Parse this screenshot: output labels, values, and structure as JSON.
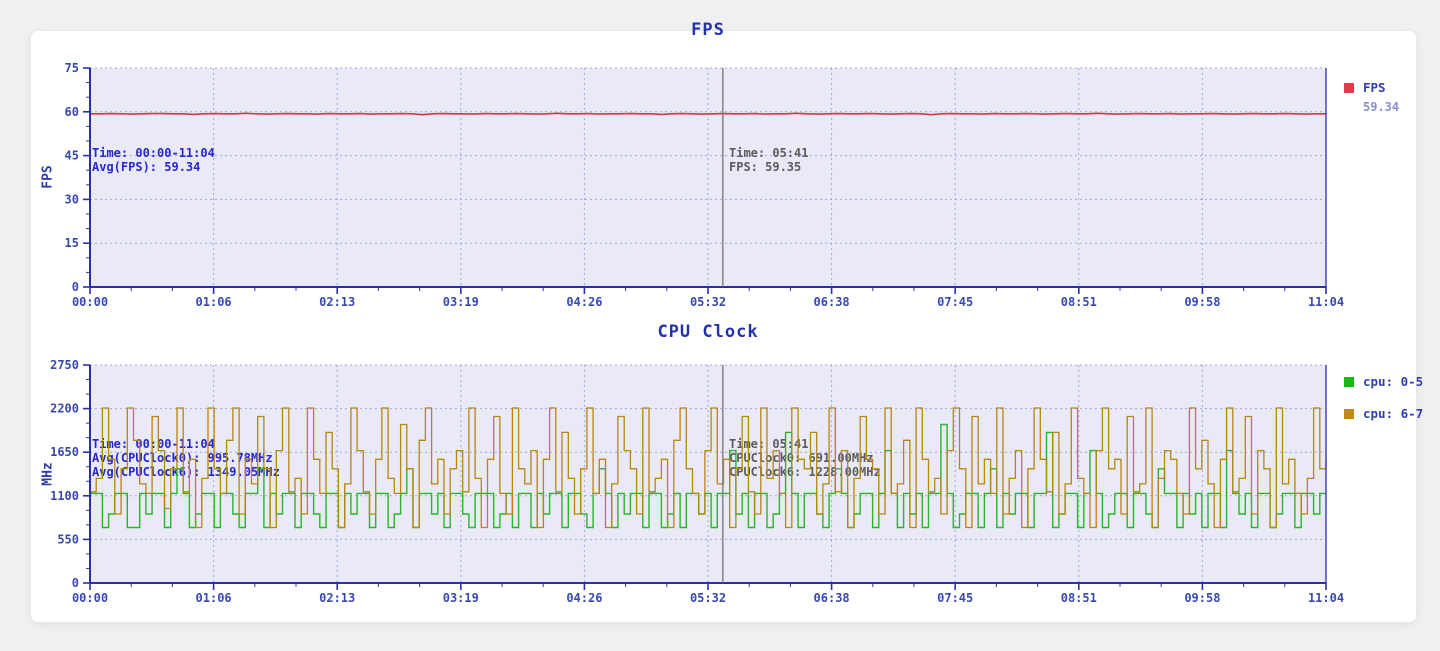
{
  "page": {
    "background": "#f0f0f2",
    "card_background": "#ffffff"
  },
  "chart_data": [
    {
      "type": "line",
      "title": "FPS",
      "ylabel": "FPS",
      "ylim": [
        0,
        75
      ],
      "yticks": [
        0,
        15,
        30,
        45,
        60,
        75
      ],
      "x_range": "00:00-11:04",
      "xtick_labels": [
        "00:00",
        "01:06",
        "02:13",
        "03:19",
        "04:26",
        "05:32",
        "06:38",
        "07:45",
        "08:51",
        "09:58",
        "11:04"
      ],
      "grid": "dotted",
      "legend_position": "right",
      "plot_bg": "#e9e9f8",
      "axis_color": "#2d2db4",
      "grid_color": "#a4a4d9",
      "annotation_lines": [
        "Time: 00:00-11:04",
        "Avg(FPS): 59.34"
      ],
      "cursor": {
        "x_fraction": 0.512,
        "time": "05:41",
        "tooltip_lines": [
          "Time: 05:41",
          "FPS: 59.35"
        ]
      },
      "series": [
        {
          "name": "FPS",
          "color": "#d63648",
          "swatch_color": "#e23b4e",
          "legend_value": "59.34",
          "render": "linear",
          "width": 1.6,
          "values": [
            59.3,
            59.3,
            59.4,
            59.3,
            59.2,
            59.3,
            59.4,
            59.4,
            59.3,
            59.3,
            59.1,
            59.3,
            59.4,
            59.3,
            59.3,
            59.5,
            59.3,
            59.2,
            59.3,
            59.4,
            59.3,
            59.3,
            59.2,
            59.4,
            59.3,
            59.3,
            59.4,
            59.2,
            59.3,
            59.3,
            59.4,
            59.3,
            59.0,
            59.3,
            59.4,
            59.3,
            59.3,
            59.2,
            59.4,
            59.3,
            59.3,
            59.4,
            59.3,
            59.2,
            59.3,
            59.5,
            59.3,
            59.3,
            59.4,
            59.2,
            59.3,
            59.3,
            59.4,
            59.3,
            59.3,
            59.1,
            59.3,
            59.4,
            59.3,
            59.2,
            59.3,
            59.4,
            59.3,
            59.3,
            59.4,
            59.2,
            59.3,
            59.3,
            59.5,
            59.3,
            59.2,
            59.3,
            59.4,
            59.3,
            59.3,
            59.4,
            59.3,
            59.2,
            59.3,
            59.4,
            59.3,
            59.0,
            59.3,
            59.4,
            59.3,
            59.3,
            59.2,
            59.4,
            59.3,
            59.3,
            59.4,
            59.3,
            59.2,
            59.3,
            59.4,
            59.3,
            59.3,
            59.5,
            59.3,
            59.2,
            59.3,
            59.4,
            59.3,
            59.3,
            59.4,
            59.2,
            59.3,
            59.3,
            59.4,
            59.3,
            59.2,
            59.3,
            59.4,
            59.3,
            59.3,
            59.4,
            59.3,
            59.2,
            59.3,
            59.3
          ]
        }
      ]
    },
    {
      "type": "line",
      "title": "CPU Clock",
      "ylabel": "MHz",
      "ylim": [
        0,
        2750
      ],
      "yticks": [
        0,
        550,
        1100,
        1650,
        2200,
        2750
      ],
      "x_range": "00:00-11:04",
      "xtick_labels": [
        "00:00",
        "01:06",
        "02:13",
        "03:19",
        "04:26",
        "05:32",
        "06:38",
        "07:45",
        "08:51",
        "09:58",
        "11:04"
      ],
      "grid": "dotted",
      "legend_position": "right",
      "plot_bg": "#e9e9f8",
      "axis_color": "#2d2db4",
      "grid_color": "#a4a4d9",
      "annotation_lines": [
        "Time: 00:00-11:04",
        "Avg(CPUClock0): 995.78MHz",
        "Avg(CPUClock6): 1349.05MHz"
      ],
      "cursor": {
        "x_fraction": 0.512,
        "time": "05:41",
        "tooltip_lines": [
          "Time: 05:41",
          "CPUClock0: 691.00MHz",
          "CPUClock6: 1228.00MHz"
        ]
      },
      "series": [
        {
          "name": "cpu: 0-5",
          "color": "#28b628",
          "swatch_color": "#16b816",
          "render": "step",
          "width": 1.4,
          "values": [
            1130,
            1130,
            700,
            870,
            1130,
            1130,
            700,
            700,
            1130,
            870,
            1130,
            1130,
            700,
            1130,
            1440,
            1130,
            700,
            870,
            1130,
            1130,
            700,
            1130,
            1130,
            870,
            700,
            1130,
            1130,
            1440,
            700,
            1130,
            870,
            1130,
            1130,
            700,
            1130,
            1130,
            870,
            700,
            1130,
            1130,
            700,
            1130,
            870,
            1130,
            1130,
            700,
            1130,
            1130,
            700,
            870,
            1130,
            1440,
            700,
            1130,
            1130,
            870,
            1130,
            700,
            1130,
            1130,
            870,
            700,
            1130,
            1130,
            1130,
            700,
            870,
            1130,
            700,
            1130,
            1130,
            700,
            1130,
            870,
            1130,
            1130,
            700,
            1130,
            1130,
            870,
            700,
            1130,
            1440,
            1130,
            700,
            1130,
            870,
            1130,
            1130,
            700,
            1130,
            1130,
            700,
            870,
            1130,
            700,
            1130,
            1130,
            870,
            1130,
            700,
            1130,
            1130,
            1670,
            870,
            1130,
            700,
            1130,
            1130,
            700,
            870,
            1130,
            1900,
            1130,
            700,
            1130,
            1130,
            870,
            700,
            1130,
            1440,
            1130,
            700,
            870,
            1130,
            1130,
            700,
            1130,
            1670,
            1130,
            700,
            1130,
            870,
            1130,
            700,
            1130,
            1130,
            2000,
            1130,
            700,
            870,
            1130,
            1130,
            700,
            1130,
            1440,
            700,
            1130,
            870,
            1130,
            1130,
            700,
            1130,
            1130,
            1900,
            700,
            870,
            1130,
            1130,
            700,
            1130,
            1670,
            1130,
            700,
            870,
            1130,
            1130,
            700,
            1130,
            1130,
            870,
            700,
            1440,
            1130,
            1130,
            700,
            1130,
            870,
            1130,
            700,
            1130,
            1130,
            700,
            1670,
            1130,
            870,
            1130,
            700,
            1130,
            1130,
            700,
            870,
            1130,
            1130,
            700,
            1130,
            1130,
            870,
            1130,
            1130
          ]
        },
        {
          "name": "cpu: 6-7",
          "color": "#b8860b",
          "swatch_color": "#c08a12",
          "render": "step",
          "width": 1.3,
          "values": [
            1150,
            1320,
            2208,
            1560,
            870,
            1440,
            2208,
            1800,
            1250,
            1130,
            2100,
            1670,
            940,
            1440,
            2208,
            1150,
            1560,
            700,
            1320,
            2208,
            1440,
            1130,
            1800,
            2208,
            870,
            1560,
            1250,
            2100,
            1440,
            700,
            1670,
            2208,
            1150,
            1320,
            870,
            2208,
            1560,
            1130,
            1900,
            1440,
            700,
            1250,
            2208,
            1670,
            1150,
            870,
            1560,
            2208,
            1320,
            1130,
            2000,
            1440,
            700,
            1800,
            2208,
            1250,
            1560,
            870,
            1440,
            1670,
            1150,
            2208,
            1320,
            700,
            1560,
            2100,
            1130,
            870,
            2208,
            1440,
            1250,
            1670,
            700,
            1560,
            2208,
            1150,
            1900,
            1320,
            870,
            1440,
            2208,
            1130,
            1560,
            700,
            1250,
            2100,
            1670,
            1440,
            870,
            2208,
            1150,
            1320,
            1560,
            700,
            1800,
            2208,
            1440,
            1130,
            870,
            1670,
            2208,
            1250,
            1560,
            700,
            1440,
            2100,
            1150,
            870,
            2208,
            1320,
            1670,
            1130,
            700,
            2208,
            1560,
            1440,
            1900,
            870,
            1250,
            2208,
            1150,
            1670,
            700,
            1320,
            2100,
            1560,
            1440,
            870,
            2208,
            1130,
            1250,
            1800,
            700,
            2208,
            1560,
            1150,
            1320,
            870,
            1670,
            2208,
            1440,
            700,
            2100,
            1250,
            1560,
            1130,
            2208,
            870,
            1320,
            1670,
            700,
            1440,
            2208,
            1560,
            1150,
            1900,
            870,
            1250,
            2208,
            1320,
            1130,
            700,
            1670,
            2208,
            1440,
            1560,
            870,
            2100,
            1150,
            1250,
            2208,
            700,
            1320,
            1670,
            1560,
            1130,
            870,
            2208,
            1440,
            1800,
            1250,
            700,
            1560,
            2208,
            1150,
            1320,
            2100,
            870,
            1670,
            1440,
            700,
            2208,
            1250,
            1560,
            1130,
            870,
            1320,
            2208,
            1440,
            1560
          ]
        }
      ]
    }
  ]
}
